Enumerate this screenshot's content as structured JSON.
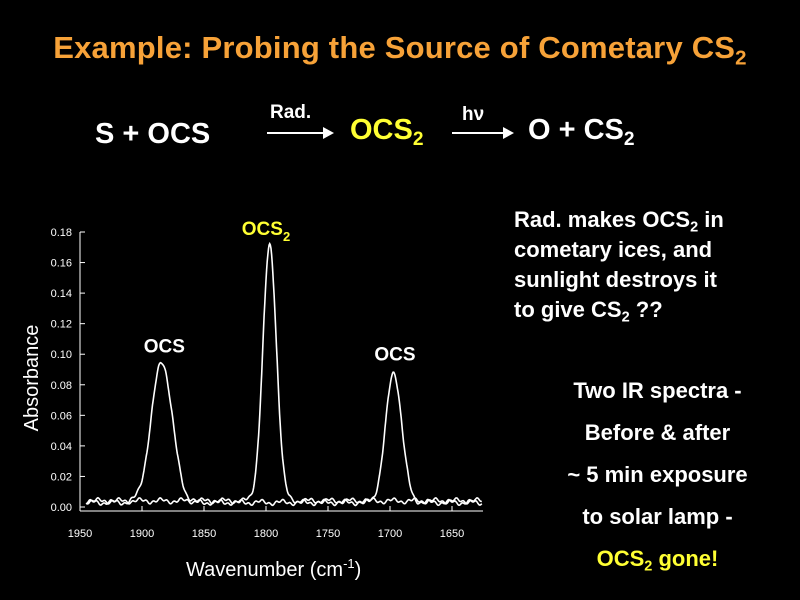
{
  "title": {
    "text": "Example: Probing the Source of Cometary CS",
    "sub": "2"
  },
  "reaction": {
    "reactants": "S  +  OCS",
    "arrow1_label": "Rad.",
    "intermediate": "OCS",
    "intermediate_sub": "2",
    "arrow2_label": "hν",
    "products": "O  +  CS",
    "products_sub": "2"
  },
  "side_text": {
    "l1a": "Rad. makes OCS",
    "l1sub": "2",
    "l1b": " in",
    "l2": "cometary ices, and",
    "l3": "sunlight destroys  it",
    "l4a": "to give CS",
    "l4sub": "2",
    "l4b": " ??"
  },
  "notes": {
    "l1": "Two IR spectra -",
    "l2": "Before & after",
    "l3": "~ 5 min exposure",
    "l4": "to solar lamp -",
    "l5a": "OCS",
    "l5sub": "2",
    "l5b": " gone!"
  },
  "colors": {
    "title": "#f7a238",
    "highlight": "#ffff33",
    "line": "#ffffff",
    "background": "#000000"
  },
  "chart_data": {
    "type": "line",
    "xlabel": "Wavenumber (cm",
    "xlabel_sup": "-1",
    "xlabel_end": ")",
    "ylabel": "Absorbance",
    "xlim": [
      1950,
      1625
    ],
    "ylim": [
      0,
      0.18
    ],
    "x_reversed": true,
    "x_ticks": [
      1950,
      1900,
      1850,
      1800,
      1750,
      1700,
      1650
    ],
    "y_ticks": [
      "0.00",
      "0.02",
      "0.04",
      "0.06",
      "0.08",
      "0.10",
      "0.12",
      "0.14",
      "0.16",
      "0.18"
    ],
    "annotations": [
      {
        "text": "OCS",
        "x": 1882,
        "y": 0.101
      },
      {
        "text": "OCS",
        "sub": "2",
        "x": 1800,
        "y": 0.178,
        "highlight": true
      },
      {
        "text": "OCS",
        "x": 1696,
        "y": 0.096
      }
    ],
    "series": [
      {
        "baseline": 0.003,
        "peaks": [
          {
            "center": 1884,
            "height": 0.092,
            "width": 8.5
          },
          {
            "center": 1797,
            "height": 0.0,
            "width": 5
          },
          {
            "center": 1697,
            "height": 0.085,
            "width": 6.5
          }
        ]
      },
      {
        "baseline": 0.004,
        "peaks": [
          {
            "center": 1884,
            "height": 0.0,
            "width": 8.5
          },
          {
            "center": 1797,
            "height": 0.167,
            "width": 5.5
          },
          {
            "center": 1697,
            "height": 0.0,
            "width": 6.5
          }
        ]
      }
    ]
  }
}
